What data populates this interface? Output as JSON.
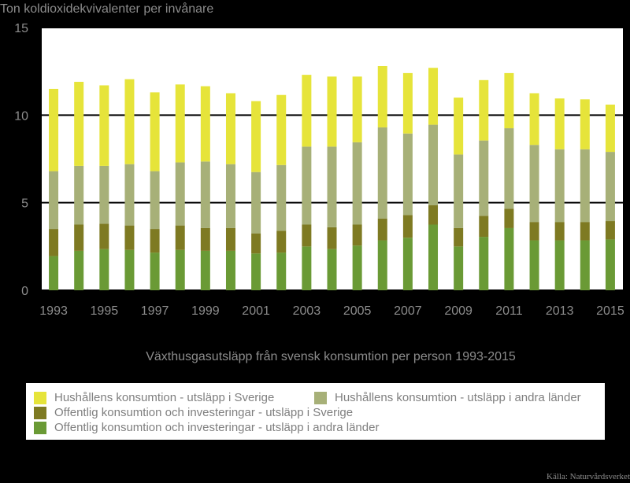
{
  "chart_data": {
    "type": "bar",
    "stacked": true,
    "title": "Växthusgasutsläpp från svensk konsumtion per person 1993-2015",
    "ylabel": "Ton koldioxidekvivalenter per invånare",
    "xlabel": "",
    "ylim": [
      0,
      15
    ],
    "yticks": [
      0,
      5,
      10,
      15
    ],
    "xtick_labels": [
      "1993",
      "1995",
      "1997",
      "1999",
      "2001",
      "2003",
      "2005",
      "2007",
      "2009",
      "2011",
      "2013",
      "2015"
    ],
    "grid": true,
    "legend_position": "bottom",
    "categories": [
      "1993",
      "1994",
      "1995",
      "1996",
      "1997",
      "1998",
      "1999",
      "2000",
      "2001",
      "2002",
      "2003",
      "2004",
      "2005",
      "2006",
      "2007",
      "2008",
      "2009",
      "2010",
      "2011",
      "2012",
      "2013",
      "2014",
      "2015"
    ],
    "series": [
      {
        "name": "Offentlig konsumtion och investeringar - utsläpp i andra länder",
        "color": "#6a9a35",
        "values": [
          1.95,
          2.25,
          2.35,
          2.3,
          2.15,
          2.3,
          2.25,
          2.25,
          2.1,
          2.15,
          2.5,
          2.35,
          2.55,
          2.85,
          3.0,
          3.75,
          2.5,
          3.05,
          3.55,
          2.85,
          2.85,
          2.85,
          2.9
        ]
      },
      {
        "name": "Offentlig konsumtion och investeringar - utsläpp i Sverige",
        "color": "#7e7a22",
        "values": [
          1.55,
          1.5,
          1.45,
          1.4,
          1.35,
          1.4,
          1.3,
          1.3,
          1.15,
          1.25,
          1.25,
          1.25,
          1.2,
          1.25,
          1.3,
          1.1,
          1.05,
          1.2,
          1.1,
          1.05,
          1.05,
          1.05,
          1.05
        ]
      },
      {
        "name": "Hushållens konsumtion - utsläpp i andra länder",
        "color": "#a7b078",
        "values": [
          3.3,
          3.35,
          3.3,
          3.5,
          3.3,
          3.6,
          3.8,
          3.65,
          3.5,
          3.75,
          4.45,
          4.6,
          4.7,
          5.2,
          4.65,
          4.6,
          4.2,
          4.3,
          4.6,
          4.4,
          4.15,
          4.15,
          3.95
        ]
      },
      {
        "name": "Hushållens konsumtion - utsläpp i Sverige",
        "color": "#e6e43a",
        "values": [
          4.7,
          4.8,
          4.6,
          4.85,
          4.5,
          4.45,
          4.3,
          4.05,
          4.05,
          4.0,
          4.1,
          4.0,
          3.75,
          3.5,
          3.45,
          3.25,
          3.25,
          3.45,
          3.15,
          2.95,
          2.9,
          2.85,
          2.7
        ]
      }
    ]
  },
  "legend": {
    "items": [
      {
        "label": "Hushållens konsumtion - utsläpp i Sverige",
        "color": "#e6e43a"
      },
      {
        "label": "Hushållens konsumtion - utsläpp i andra länder",
        "color": "#a7b078"
      },
      {
        "label": "Offentlig konsumtion och investeringar - utsläpp i Sverige",
        "color": "#7e7a22"
      },
      {
        "label": "Offentlig konsumtion och investeringar - utsläpp i andra länder",
        "color": "#6a9a35"
      }
    ]
  },
  "source": "Källa: Naturvårdsverket"
}
